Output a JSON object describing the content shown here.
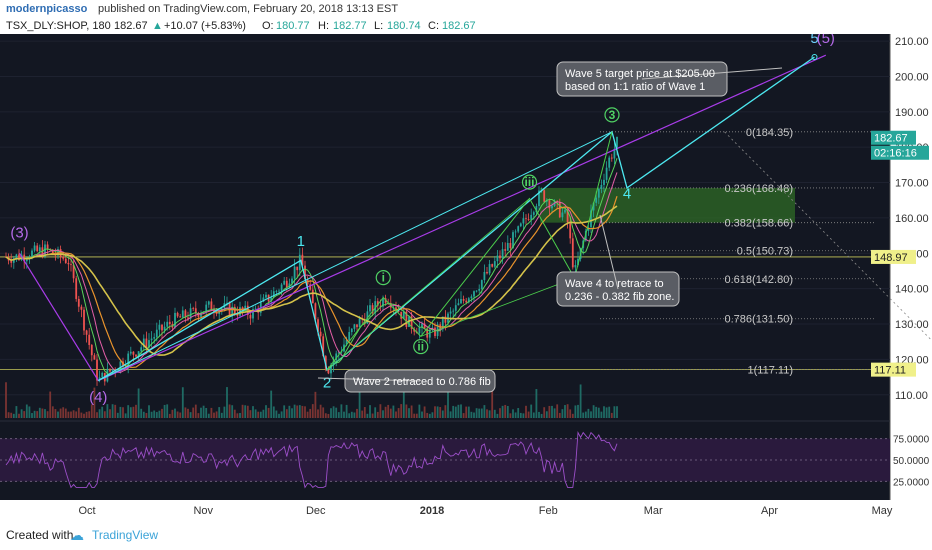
{
  "header": {
    "user": "modernpicasso",
    "published": "published on TradingView.com, February 20, 2018 13:13 EST"
  },
  "quote": {
    "symbol": "TSX_DLY:SHOP, 180",
    "last": "182.67",
    "change": "+10.07 (+5.83%)",
    "open_label": "O:",
    "open": "180.77",
    "high_label": "H:",
    "high": "182.77",
    "low_label": "L:",
    "low": "180.74",
    "close_label": "C:",
    "close": "182.67",
    "up_arrow": "▲"
  },
  "colors": {
    "bg": "#131722",
    "up": "#26a69a",
    "down": "#ef5350",
    "cyan": "#4de8f0",
    "purple": "#a83ce8",
    "fib_box": "#2f6b25",
    "ma_yellow": "#d4c24a",
    "ma_orange": "#e8932c",
    "ma_pink": "#e35ea8",
    "ma_green": "#5ad25a",
    "wave_green": "#50d264",
    "rsi_fill": "#2a1a3d"
  },
  "chart_data": {
    "type": "line",
    "title": "TSX_DLY:SHOP, 180",
    "ylim": [
      104,
      212
    ],
    "y_ticks": [
      "210.00",
      "200.00",
      "190.00",
      "180.00",
      "170.00",
      "160.00",
      "150.00",
      "140.00",
      "130.00",
      "120.00",
      "110.00"
    ],
    "x_ticks": [
      "Oct",
      "Nov",
      "Dec",
      "2018",
      "Feb",
      "Mar",
      "Apr",
      "May"
    ],
    "rsi_ticks": [
      "75.0000",
      "50.0000",
      "25.0000"
    ],
    "price_path": [
      {
        "x": "Sep 12",
        "y": 149
      },
      {
        "x": "Sep 20",
        "y": 151
      },
      {
        "x": "Sep 26",
        "y": 148
      },
      {
        "x": "Oct 4",
        "y": 114
      },
      {
        "x": "Oct 10",
        "y": 119
      },
      {
        "x": "Oct 24",
        "y": 131
      },
      {
        "x": "Nov 3",
        "y": 135
      },
      {
        "x": "Nov 14",
        "y": 133
      },
      {
        "x": "Nov 23",
        "y": 142
      },
      {
        "x": "Nov 27",
        "y": 148
      },
      {
        "x": "Dec 2",
        "y": 128
      },
      {
        "x": "Dec 4",
        "y": 117
      },
      {
        "x": "Dec 12",
        "y": 130
      },
      {
        "x": "Dec 20",
        "y": 138
      },
      {
        "x": "Dec 26",
        "y": 130
      },
      {
        "x": "Jan 1",
        "y": 127
      },
      {
        "x": "Jan 14",
        "y": 142
      },
      {
        "x": "Jan 24",
        "y": 156
      },
      {
        "x": "Jan 30",
        "y": 167
      },
      {
        "x": "Feb 6",
        "y": 160
      },
      {
        "x": "Feb 8",
        "y": 144
      },
      {
        "x": "Feb 12",
        "y": 160
      },
      {
        "x": "Feb 17",
        "y": 176
      },
      {
        "x": "Feb 20",
        "y": 182.67
      }
    ],
    "current_price": "182.67",
    "countdown": "02:16:16",
    "horizontal_levels": [
      {
        "label": "148.97",
        "value": 148.97
      },
      {
        "label": "117.11",
        "value": 117.11
      }
    ],
    "fib_levels": [
      {
        "label": "0(184.35)",
        "value": 184.35
      },
      {
        "label": "0.236(168.48)",
        "value": 168.48
      },
      {
        "label": "0.382(158.66)",
        "value": 158.66
      },
      {
        "label": "0.5(150.73)",
        "value": 150.73
      },
      {
        "label": "0.618(142.80)",
        "value": 142.8
      },
      {
        "label": "0.786(131.50)",
        "value": 131.5
      },
      {
        "label": "1(117.11)",
        "value": 117.11
      }
    ],
    "wave_labels": [
      {
        "text": "(3)",
        "x": "Sep 13",
        "y": 154.5
      },
      {
        "text": "(4)",
        "x": "Oct 4",
        "y": 108
      },
      {
        "text": "1",
        "x": "Nov 27",
        "y": 152
      },
      {
        "text": "2",
        "x": "Dec 4",
        "y": 112
      },
      {
        "text": "i",
        "x": "Dec 19",
        "y": 142
      },
      {
        "text": "ii",
        "x": "Dec 29",
        "y": 122.5
      },
      {
        "text": "iii",
        "x": "Jan 27",
        "y": 169
      },
      {
        "text": "iv",
        "x": "Feb 8",
        "y": 139
      },
      {
        "text": "3",
        "x": "Feb 18",
        "y": 188
      },
      {
        "text": "4",
        "x": "Feb 22",
        "y": 165.5
      },
      {
        "text": "5",
        "x": "Apr 13",
        "y": 209.5
      },
      {
        "text": "(5)",
        "x": "Apr 16",
        "y": 209.5
      }
    ],
    "annotations": {
      "wave5": "Wave 5 target price at $205.00 based on 1:1 ratio of Wave 1",
      "wave4": "Wave 4 to retrace to 0.236 - 0.382 fib zone.",
      "wave2": "Wave 2 retraced to 0.786 fib"
    }
  },
  "footer": {
    "created_with": "Created with",
    "brand": "TradingView"
  }
}
